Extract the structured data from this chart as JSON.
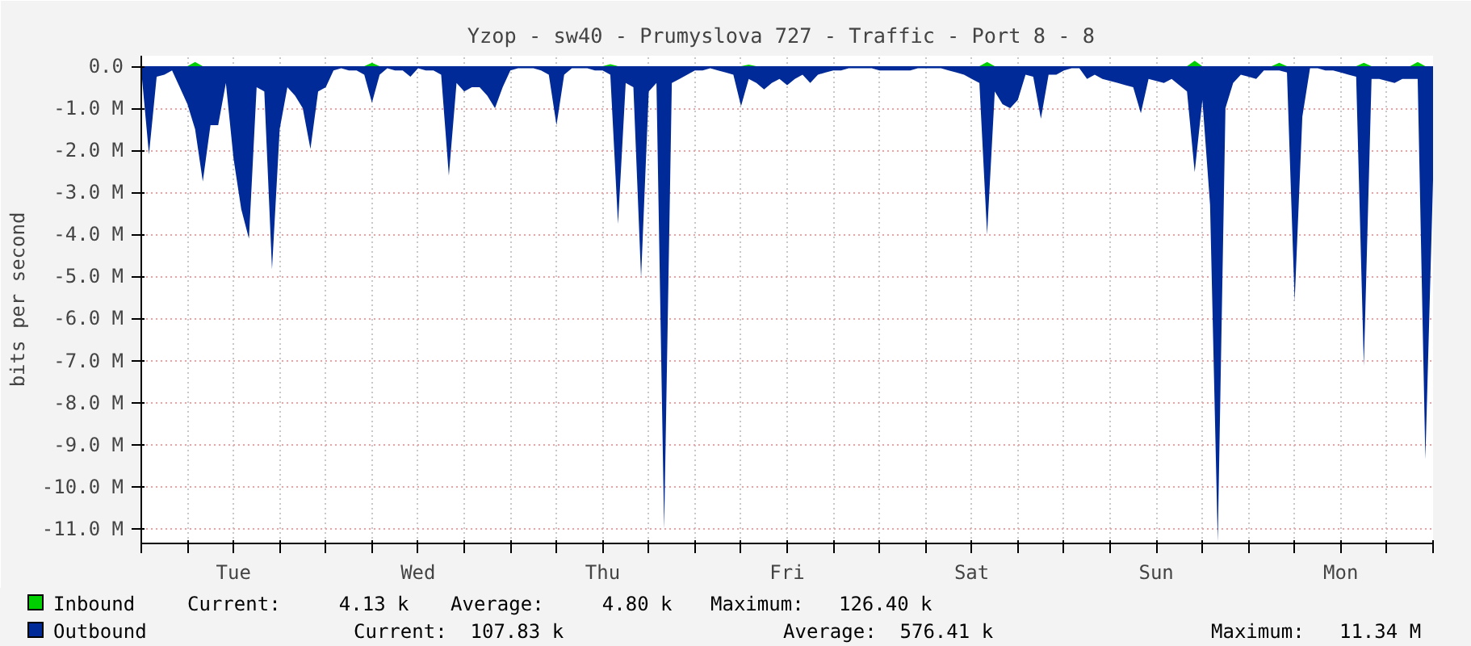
{
  "chart_data": {
    "type": "area",
    "title": "Yzop - sw40 - Prumyslova 727 - Traffic - Port  8 - 8",
    "ylabel": "bits per second",
    "categories": [
      null,
      null,
      null,
      null,
      null,
      null,
      null,
      null,
      null,
      null,
      null,
      null,
      "Tue",
      null,
      null,
      null,
      null,
      null,
      null,
      null,
      null,
      null,
      null,
      null,
      null,
      null,
      null,
      null,
      null,
      null,
      null,
      null,
      null,
      null,
      null,
      null,
      "Wed",
      null,
      null,
      null,
      null,
      null,
      null,
      null,
      null,
      null,
      null,
      null,
      null,
      null,
      null,
      null,
      null,
      null,
      null,
      null,
      null,
      null,
      null,
      null,
      "Thu",
      null,
      null,
      null,
      null,
      null,
      null,
      null,
      null,
      null,
      null,
      null,
      null,
      null,
      null,
      null,
      null,
      null,
      null,
      null,
      null,
      null,
      null,
      null,
      "Fri",
      null,
      null,
      null,
      null,
      null,
      null,
      null,
      null,
      null,
      null,
      null,
      null,
      null,
      null,
      null,
      null,
      null,
      null,
      null,
      null,
      null,
      null,
      null,
      "Sat",
      null,
      null,
      null,
      null,
      null,
      null,
      null,
      null,
      null,
      null,
      null,
      null,
      null,
      null,
      null,
      null,
      null,
      null,
      null,
      null,
      null,
      null,
      null,
      "Sun",
      null,
      null,
      null,
      null,
      null,
      null,
      null,
      null,
      null,
      null,
      null,
      null,
      null,
      null,
      null,
      null,
      null,
      null,
      null,
      null,
      null,
      null,
      null,
      "Mon",
      null,
      null,
      null,
      null,
      null,
      null,
      null,
      null,
      null,
      null,
      null,
      null
    ],
    "ylim": [
      -11.35,
      0.25
    ],
    "yticks": [
      {
        "value": 0,
        "label": "0.0"
      },
      {
        "value": -1,
        "label": "-1.0 M"
      },
      {
        "value": -2,
        "label": "-2.0 M"
      },
      {
        "value": -3,
        "label": "-3.0 M"
      },
      {
        "value": -4,
        "label": "-4.0 M"
      },
      {
        "value": -5,
        "label": "-5.0 M"
      },
      {
        "value": -6,
        "label": "-6.0 M"
      },
      {
        "value": -7,
        "label": "-7.0 M"
      },
      {
        "value": -8,
        "label": "-8.0 M"
      },
      {
        "value": -9,
        "label": "-9.0 M"
      },
      {
        "value": -10,
        "label": "-10.0 M"
      },
      {
        "value": -11,
        "label": "-11.0 M"
      }
    ],
    "grid": true,
    "legend": "bottom",
    "series": [
      {
        "name": "Outbound",
        "color": "#002a97",
        "values": [
          -0.1,
          -2.1,
          -0.25,
          -0.2,
          -0.1,
          -0.5,
          -0.9,
          -1.5,
          -2.74,
          -1.4,
          -1.4,
          -0.4,
          -2.2,
          -3.4,
          -4.1,
          -0.5,
          -0.6,
          -4.83,
          -1.5,
          -0.5,
          -0.7,
          -1.0,
          -1.97,
          -0.6,
          -0.5,
          -0.1,
          -0.05,
          -0.1,
          -0.1,
          -0.2,
          -0.87,
          -0.2,
          -0.05,
          -0.1,
          -0.1,
          -0.25,
          -0.05,
          -0.1,
          -0.1,
          -0.2,
          -2.6,
          -0.4,
          -0.6,
          -0.5,
          -0.5,
          -0.7,
          -1.0,
          -0.5,
          -0.1,
          -0.05,
          -0.05,
          -0.05,
          -0.1,
          -0.2,
          -1.4,
          -0.2,
          -0.05,
          -0.05,
          -0.05,
          -0.1,
          -0.1,
          -0.2,
          -3.75,
          -0.4,
          -0.5,
          -5.03,
          -0.6,
          -0.4,
          -11.0,
          -0.4,
          -0.3,
          -0.2,
          -0.1,
          -0.1,
          -0.05,
          -0.1,
          -0.15,
          -0.2,
          -0.95,
          -0.3,
          -0.4,
          -0.55,
          -0.4,
          -0.3,
          -0.45,
          -0.3,
          -0.2,
          -0.4,
          -0.2,
          -0.15,
          -0.1,
          -0.1,
          -0.05,
          -0.05,
          -0.05,
          -0.05,
          -0.1,
          -0.1,
          -0.1,
          -0.1,
          -0.1,
          -0.05,
          -0.05,
          -0.05,
          -0.05,
          -0.1,
          -0.15,
          -0.2,
          -0.3,
          -0.4,
          -4.0,
          -0.6,
          -0.9,
          -1.0,
          -0.8,
          -0.2,
          -0.25,
          -1.25,
          -0.2,
          -0.2,
          -0.1,
          -0.05,
          -0.05,
          -0.3,
          -0.2,
          -0.3,
          -0.35,
          -0.4,
          -0.45,
          -0.5,
          -1.12,
          -0.3,
          -0.35,
          -0.4,
          -0.3,
          -0.45,
          -0.6,
          -2.52,
          -0.8,
          -3.3,
          -11.3,
          -1.0,
          -0.4,
          -0.2,
          -0.25,
          -0.3,
          -0.1,
          -0.1,
          -0.1,
          -0.15,
          -5.6,
          -1.2,
          -0.05,
          -0.05,
          -0.1,
          -0.1,
          -0.15,
          -0.2,
          -0.25,
          -7.13,
          -0.3,
          -0.3,
          -0.35,
          -0.4,
          -0.3,
          -0.3,
          -0.3,
          -9.35,
          -2.7
        ]
      },
      {
        "name": "Inbound",
        "color": "#00cf00",
        "values": [
          0,
          0,
          0,
          0,
          0,
          0,
          0,
          0.1,
          0,
          0,
          0,
          0,
          0,
          0,
          0,
          0,
          0,
          0,
          0,
          0,
          0,
          0,
          0,
          0,
          0,
          0,
          0,
          0,
          0,
          0,
          0.08,
          0,
          0,
          0,
          0,
          0,
          0,
          0,
          0,
          0,
          0,
          0,
          0,
          0,
          0,
          0,
          0,
          0,
          0,
          0,
          0,
          0,
          0,
          0,
          0,
          0,
          0,
          0,
          0,
          0,
          0,
          0.05,
          0,
          0,
          0,
          0,
          0,
          0,
          0,
          0,
          0,
          0,
          0,
          0,
          0,
          0,
          0,
          0,
          0,
          0.04,
          0,
          0,
          0,
          0,
          0,
          0,
          0,
          0,
          0,
          0,
          0,
          0,
          0,
          0,
          0,
          0,
          0,
          0,
          0,
          0,
          0,
          0,
          0,
          0,
          0,
          0,
          0,
          0,
          0,
          0,
          0.1,
          0,
          0,
          0,
          0,
          0,
          0,
          0,
          0,
          0,
          0,
          0,
          0,
          0,
          0,
          0,
          0,
          0,
          0,
          0,
          0,
          0,
          0,
          0,
          0,
          0,
          0,
          0.13,
          0,
          0,
          0,
          0,
          0,
          0,
          0,
          0,
          0,
          0,
          0.08,
          0,
          0,
          0,
          0,
          0,
          0,
          0,
          0,
          0,
          0,
          0.08,
          0,
          0,
          0,
          0,
          0,
          0,
          0.1,
          0,
          0
        ]
      }
    ],
    "annotations": [
      "Current:     4.13 k",
      "Average:     4.80 k",
      "Maximum:   126.40 k",
      "Current:  107.83 k",
      "Average:  576.41 k",
      "Maximum:   11.34 M"
    ]
  }
}
